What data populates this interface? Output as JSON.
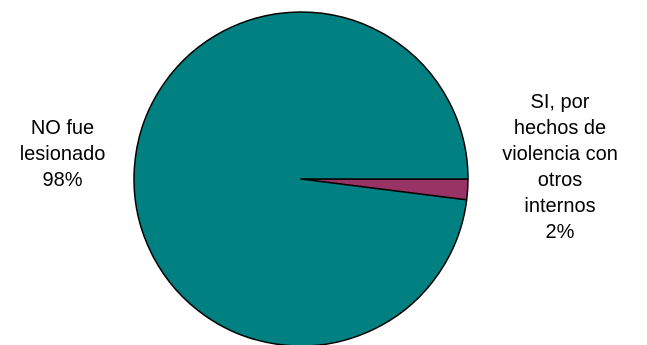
{
  "chart_data": {
    "type": "pie",
    "title": "",
    "slices": [
      {
        "label_lines": [
          "NO fue",
          "lesionado"
        ],
        "percent_label": "98%",
        "value": 98,
        "color": "#008080"
      },
      {
        "label_lines": [
          "SI, por",
          "hechos de",
          "violencia con",
          "otros",
          "internos"
        ],
        "percent_label": "2%",
        "value": 2,
        "color": "#993366"
      }
    ],
    "legend": "none"
  }
}
